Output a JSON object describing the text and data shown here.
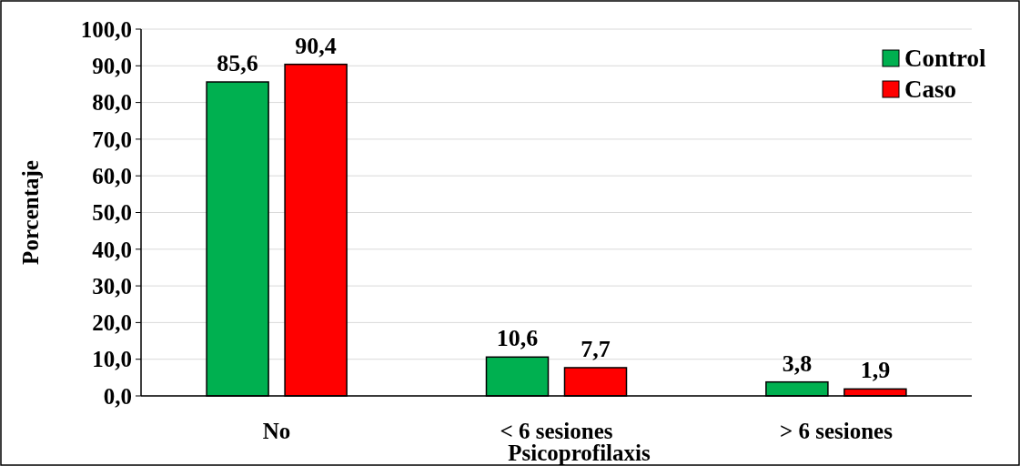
{
  "chart_data": {
    "type": "bar",
    "xlabel": "Psicoprofilaxis",
    "ylabel": "Porcentaje",
    "categories": [
      "No",
      "< 6 sesiones",
      "> 6 sesiones"
    ],
    "series": [
      {
        "name": "Control",
        "color": "#00b050",
        "values": [
          85.6,
          10.6,
          3.8
        ],
        "value_labels": [
          "85,6",
          "10,6",
          "3,8"
        ]
      },
      {
        "name": "Caso",
        "color": "#ff0000",
        "values": [
          90.4,
          7.7,
          1.9
        ],
        "value_labels": [
          "90,4",
          "7,7",
          "1,9"
        ]
      }
    ],
    "ylim": [
      0,
      100
    ],
    "yticks": [
      {
        "value": 0,
        "label": "0,0"
      },
      {
        "value": 10,
        "label": "10,0"
      },
      {
        "value": 20,
        "label": "20,0"
      },
      {
        "value": 30,
        "label": "30,0"
      },
      {
        "value": 40,
        "label": "40,0"
      },
      {
        "value": 50,
        "label": "50,0"
      },
      {
        "value": 60,
        "label": "60,0"
      },
      {
        "value": 70,
        "label": "70,0"
      },
      {
        "value": 80,
        "label": "80,0"
      },
      {
        "value": 90,
        "label": "90,0"
      },
      {
        "value": 100,
        "label": "100,0"
      }
    ],
    "grid": "y",
    "legend": "top right"
  }
}
